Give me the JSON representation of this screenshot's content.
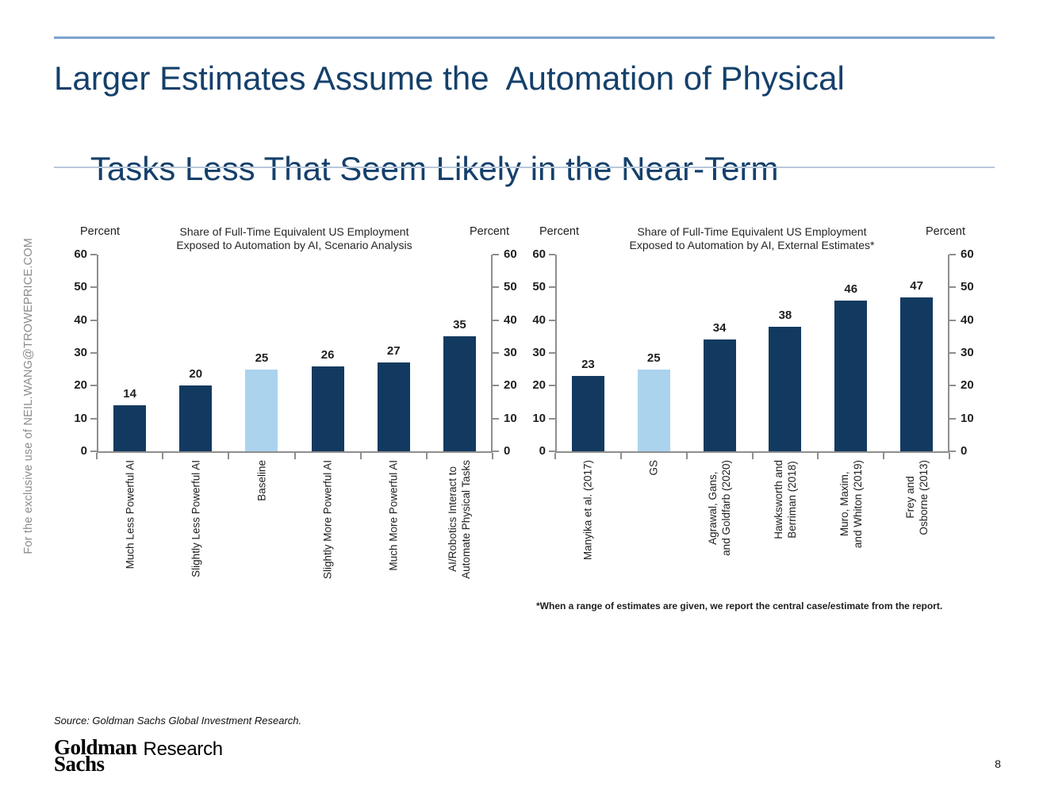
{
  "slide": {
    "title_line1": "Larger Estimates Assume the  Automation of Physical",
    "title_line2": "Tasks Less That Seem Likely in the Near-Term",
    "watermark": "For the exclusive use of NEIL.WANG@TROWEPRICE.COM",
    "source": "Source: Goldman Sachs Global Investment Research.",
    "logo_line1": "Goldman",
    "logo_line2": "Sachs",
    "logo_suffix": "Research",
    "page_number": "8"
  },
  "colors": {
    "title_navy": "#15406b",
    "bar_navy": "#123a60",
    "bar_light_blue": "#abd3ee",
    "axis_gray": "#8e8e8e",
    "top_rule_blue": "#7ea3cd",
    "sub_rule_blue": "#b8c8da",
    "watermark_gray": "#8c8c8c"
  },
  "chart_data": [
    {
      "type": "bar",
      "title": "Share of Full-Time Equivalent US Employment Exposed to Automation by AI, Scenario Analysis",
      "title_line1": "Share of Full-Time Equivalent US Employment",
      "title_line2": "Exposed to Automation by AI, Scenario Analysis",
      "ylabel_left": "Percent",
      "ylabel_right": "Percent",
      "ylim": [
        0,
        60
      ],
      "yticks": [
        0,
        10,
        20,
        30,
        40,
        50,
        60
      ],
      "grid": false,
      "categories": [
        "Much Less Powerful AI",
        "Slightly Less Powerful AI",
        "Baseline",
        "Slightly More Powerful AI",
        "Much More Powerful AI",
        "AI/Robotics Interact to\nAutomate Physical Tasks"
      ],
      "values": [
        14,
        20,
        25,
        26,
        27,
        35
      ],
      "highlight_index": 2,
      "bar_color": "#123a60",
      "highlight_color": "#abd3ee"
    },
    {
      "type": "bar",
      "title": "Share of Full-Time Equivalent US Employment Exposed to Automation by AI, External Estimates*",
      "title_line1": "Share of Full-Time Equivalent US Employment",
      "title_line2": "Exposed to Automation by AI, External Estimates*",
      "ylabel_left": "Percent",
      "ylabel_right": "Percent",
      "ylim": [
        0,
        60
      ],
      "yticks": [
        0,
        10,
        20,
        30,
        40,
        50,
        60
      ],
      "grid": false,
      "categories": [
        "Manyika et al. (2017)",
        "GS",
        "Agrawal, Gans,\nand Goldfarb (2020)",
        "Hawksworth and\nBerriman (2018)",
        "Muro, Maxim,\nand Whiton (2019)",
        "Frey and\nOsborne (2013)"
      ],
      "values": [
        23,
        25,
        34,
        38,
        46,
        47
      ],
      "highlight_index": 1,
      "bar_color": "#123a60",
      "highlight_color": "#abd3ee",
      "footnote": "*When a range of estimates are given, we report the central case/estimate from the report."
    }
  ]
}
